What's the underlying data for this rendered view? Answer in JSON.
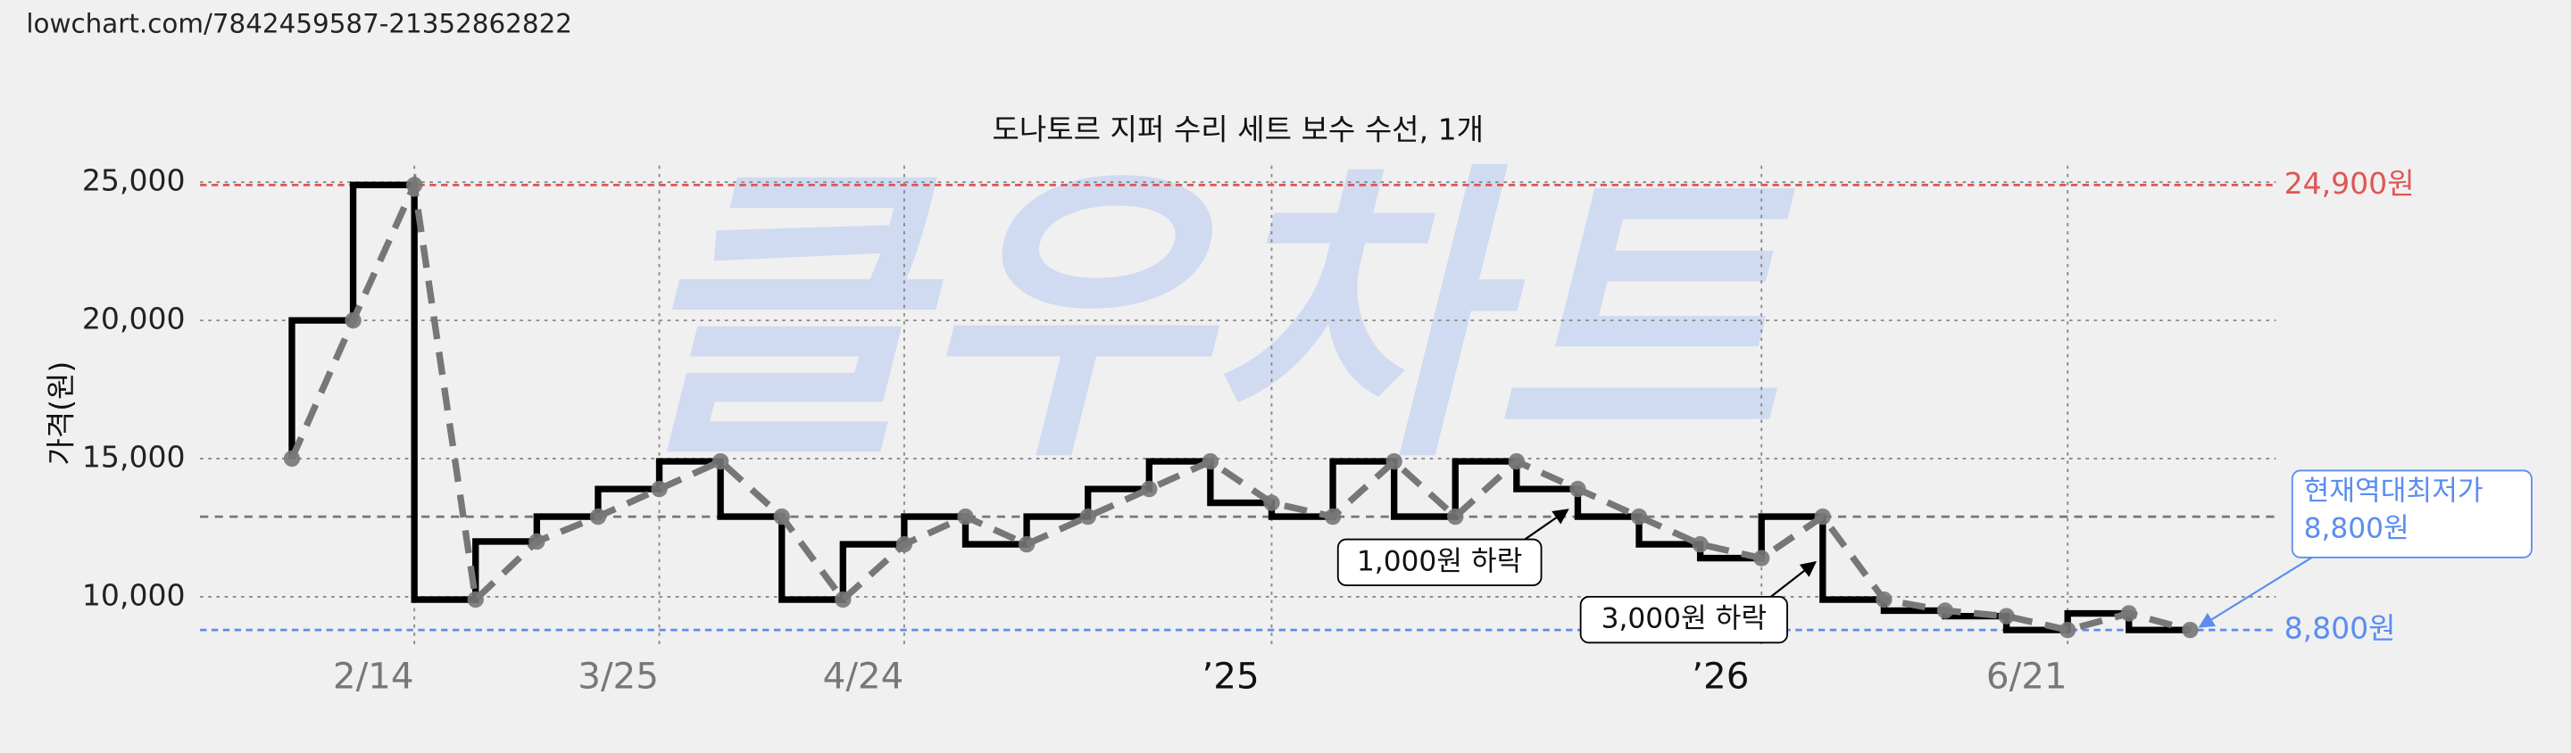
{
  "header": {
    "url": "lowchart.com/7842459587-21352862822"
  },
  "chart_data": {
    "type": "line",
    "title": "도나토르 지퍼 수리 세트 보수 수선, 1개",
    "watermark": "클우차트",
    "y_label": "가격(원)",
    "series": [
      {
        "values": [
          15000,
          20000,
          24900,
          9900,
          12000,
          12900,
          13900,
          14900,
          12900,
          9900,
          11900,
          12900,
          11900,
          12900,
          13900,
          14900,
          13400,
          12900,
          14900,
          12900,
          14900,
          13900,
          12900,
          11900,
          11400,
          12900,
          9900,
          9500,
          9300,
          8800,
          9400,
          8800
        ],
        "step_color": "#000000",
        "line_color": "#777777"
      }
    ],
    "xlim": [
      -1.5,
      32.4
    ],
    "xticks": [
      {
        "value": 2,
        "label": "2/14"
      },
      {
        "value": 6,
        "label": "3/25"
      },
      {
        "value": 10,
        "label": "4/24"
      },
      {
        "value": 16,
        "label": "’25"
      },
      {
        "value": 24,
        "label": "’26"
      },
      {
        "value": 29,
        "label": "6/21"
      }
    ],
    "ylim": [
      8200,
      25600
    ],
    "yticks": [
      {
        "value": 10000,
        "label": "10,000"
      },
      {
        "value": 15000,
        "label": "15,000"
      },
      {
        "value": 20000,
        "label": "20,000"
      },
      {
        "value": 25000,
        "label": "25,000"
      }
    ],
    "grid": true,
    "max_line": {
      "value": 24900,
      "label": "24,900원",
      "color": "#e05555"
    },
    "min_line": {
      "value": 8800,
      "label": "8,800원",
      "color": "#5b8def"
    },
    "average_line": {
      "value": 12900,
      "color": "#777777"
    },
    "annotations": [
      "1,000원 하락",
      "3,000원 하락"
    ],
    "callout": [
      "현재역대최저가",
      "8,800원"
    ]
  }
}
